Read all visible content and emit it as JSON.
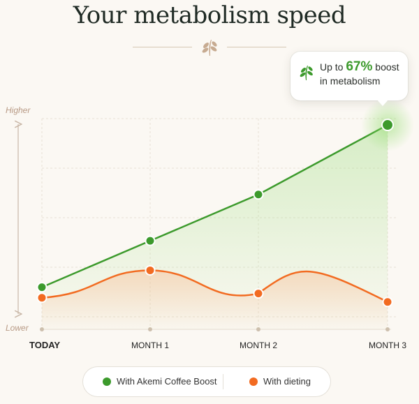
{
  "title": "Your metabolism speed",
  "callout": {
    "prefix": "Up to ",
    "percent": "67%",
    "suffix": " boost",
    "line2": "in metabolism"
  },
  "legend": {
    "items": [
      {
        "label": "With Akemi Coffee Boost",
        "color": "#3c9a2c"
      },
      {
        "label": "With dieting",
        "color": "#f26b21"
      }
    ]
  },
  "colors": {
    "green": "#3c9a2c",
    "orange": "#f26b21",
    "axis_label": "#b89a85",
    "grid": "#e7e1d6"
  },
  "chart_data": {
    "type": "line",
    "categories": [
      "TODAY",
      "MONTH 1",
      "MONTH 2",
      "MONTH 3"
    ],
    "ylabel_top": "Higher",
    "ylabel_bottom": "Lower",
    "ylim": [
      0,
      100
    ],
    "series": [
      {
        "name": "With Akemi Coffee Boost",
        "values": [
          20,
          42,
          64,
          97
        ]
      },
      {
        "name": "With dieting",
        "values": [
          15,
          28,
          17,
          13
        ]
      }
    ]
  }
}
